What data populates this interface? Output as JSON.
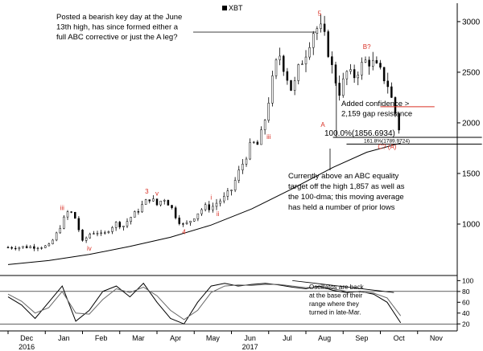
{
  "chart_data": [
    {
      "type": "candlestick",
      "legend": "XBT",
      "y_ticks": [
        "3000",
        "2500",
        "2000",
        "1500",
        "1000"
      ],
      "ylim": [
        500,
        3150
      ],
      "x_labels": [
        {
          "month": "Dec",
          "year": "2016"
        },
        {
          "month": "Jan",
          "year": ""
        },
        {
          "month": "Feb",
          "year": ""
        },
        {
          "month": "Mar",
          "year": ""
        },
        {
          "month": "Apr",
          "year": ""
        },
        {
          "month": "May",
          "year": ""
        },
        {
          "month": "Jun",
          "year": "2017"
        },
        {
          "month": "Jul",
          "year": ""
        },
        {
          "month": "Aug",
          "year": ""
        },
        {
          "month": "Sep",
          "year": ""
        },
        {
          "month": "Oct",
          "year": ""
        },
        {
          "month": "Nov",
          "year": ""
        }
      ],
      "price_path": [
        [
          0,
          770
        ],
        [
          3,
          775
        ],
        [
          6,
          780
        ],
        [
          7,
          880
        ],
        [
          8,
          1020
        ],
        [
          9,
          1140
        ],
        [
          10,
          1050
        ],
        [
          11,
          820
        ],
        [
          12,
          900
        ],
        [
          13,
          930
        ],
        [
          14,
          880
        ],
        [
          15,
          960
        ],
        [
          16,
          1010
        ],
        [
          17,
          980
        ],
        [
          18,
          1060
        ],
        [
          19,
          1120
        ],
        [
          20,
          1200
        ],
        [
          21,
          1260
        ],
        [
          22,
          1190
        ],
        [
          23,
          1260
        ],
        [
          24,
          1180
        ],
        [
          25,
          1050
        ],
        [
          26,
          980
        ],
        [
          27,
          1040
        ],
        [
          28,
          1110
        ],
        [
          29,
          1170
        ],
        [
          30,
          1160
        ],
        [
          31,
          1220
        ],
        [
          32,
          1260
        ],
        [
          33,
          1340
        ],
        [
          34,
          1500
        ],
        [
          35,
          1650
        ],
        [
          36,
          1800
        ],
        [
          37,
          1780
        ],
        [
          38,
          2050
        ],
        [
          39,
          2400
        ],
        [
          40,
          2700
        ],
        [
          41,
          2500
        ],
        [
          42,
          2300
        ],
        [
          43,
          2550
        ],
        [
          44,
          2700
        ],
        [
          45,
          2900
        ],
        [
          46,
          2950
        ],
        [
          47,
          2800
        ],
        [
          48,
          2500
        ],
        [
          49,
          2300
        ],
        [
          50,
          2500
        ],
        [
          51,
          2450
        ],
        [
          52,
          2550
        ],
        [
          53,
          2620
        ],
        [
          54,
          2580
        ],
        [
          55,
          2500
        ],
        [
          56,
          2400
        ],
        [
          57,
          2150
        ],
        [
          58,
          1880
        ]
      ],
      "moving_average": {
        "label": "100-dma",
        "points": [
          [
            0,
            600
          ],
          [
            6,
            640
          ],
          [
            12,
            700
          ],
          [
            18,
            780
          ],
          [
            24,
            870
          ],
          [
            30,
            990
          ],
          [
            36,
            1150
          ],
          [
            42,
            1350
          ],
          [
            48,
            1560
          ],
          [
            53,
            1710
          ],
          [
            58,
            1800
          ]
        ]
      },
      "point_labels": [
        {
          "text": "iii",
          "x": 8,
          "y": 1140,
          "color": "#d93025"
        },
        {
          "text": "iv",
          "x": 12,
          "y": 740,
          "color": "#d93025"
        },
        {
          "text": "3",
          "x": 20.5,
          "y": 1300,
          "color": "#d93025"
        },
        {
          "text": "v",
          "x": 22,
          "y": 1280,
          "color": "#d93025"
        },
        {
          "text": "4",
          "x": 26,
          "y": 900,
          "color": "#d93025"
        },
        {
          "text": "i",
          "x": 30,
          "y": 1240,
          "color": "#d93025"
        },
        {
          "text": "ii",
          "x": 31,
          "y": 1080,
          "color": "#d93025"
        },
        {
          "text": "iii",
          "x": 38.5,
          "y": 1840,
          "color": "#d93025"
        },
        {
          "text": "5",
          "x": 46,
          "y": 3060,
          "color": "#d93025"
        },
        {
          "text": "B?",
          "x": 53,
          "y": 2730,
          "color": "#d93025"
        },
        {
          "text": "A",
          "x": 46.5,
          "y": 1960,
          "color": "#d93025"
        },
        {
          "text": "C? (A)",
          "x": 56,
          "y": 1740,
          "color": "#d93025"
        }
      ],
      "levels": [
        {
          "label": "100.0%(1856.6934)",
          "value": 1857,
          "from_x": 48,
          "to_x": 70,
          "color": "#000000"
        },
        {
          "label": "161.8%(1789.9724)",
          "value": 1790,
          "from_x": 50,
          "to_x": 70,
          "color": "#000000"
        },
        {
          "label": "",
          "value": 2159,
          "from_x": 55,
          "to_x": 63,
          "color": "#d93025"
        }
      ],
      "annotations": [
        {
          "lines": [
            "Posted a bearish key day at the June",
            "13th high, has since formed either a",
            "full ABC corrective or just the A leg?"
          ]
        },
        {
          "lines": [
            "Added confidence >",
            "2,159 gap resistance"
          ]
        },
        {
          "lines": [
            "Currently above an ABC equality",
            "target off the high 1,857 as well as",
            "the 100-dma; this moving average",
            "has held a number of prior lows"
          ]
        }
      ],
      "grid": false,
      "legend_position": "top-center"
    },
    {
      "type": "line",
      "title": "",
      "y_ticks": [
        "100",
        "80",
        "60",
        "40",
        "20"
      ],
      "ylim": [
        10,
        105
      ],
      "series": [
        {
          "color": "#000000",
          "values": [
            [
              0,
              70
            ],
            [
              2,
              55
            ],
            [
              4,
              30
            ],
            [
              6,
              60
            ],
            [
              8,
              90
            ],
            [
              10,
              25
            ],
            [
              12,
              45
            ],
            [
              14,
              80
            ],
            [
              16,
              90
            ],
            [
              18,
              70
            ],
            [
              20,
              95
            ],
            [
              22,
              60
            ],
            [
              24,
              30
            ],
            [
              26,
              20
            ],
            [
              28,
              60
            ],
            [
              30,
              90
            ],
            [
              32,
              95
            ],
            [
              34,
              90
            ],
            [
              36,
              93
            ],
            [
              38,
              95
            ],
            [
              40,
              92
            ],
            [
              42,
              88
            ],
            [
              44,
              85
            ],
            [
              46,
              90
            ],
            [
              48,
              82
            ],
            [
              50,
              78
            ],
            [
              52,
              80
            ],
            [
              54,
              75
            ],
            [
              56,
              60
            ],
            [
              58,
              22
            ]
          ]
        },
        {
          "color": "#666666",
          "values": [
            [
              0,
              75
            ],
            [
              2,
              62
            ],
            [
              4,
              40
            ],
            [
              6,
              50
            ],
            [
              8,
              80
            ],
            [
              10,
              40
            ],
            [
              12,
              38
            ],
            [
              14,
              65
            ],
            [
              16,
              85
            ],
            [
              18,
              78
            ],
            [
              20,
              88
            ],
            [
              22,
              72
            ],
            [
              24,
              45
            ],
            [
              26,
              28
            ],
            [
              28,
              45
            ],
            [
              30,
              78
            ],
            [
              32,
              90
            ],
            [
              34,
              92
            ],
            [
              36,
              91
            ],
            [
              38,
              93
            ],
            [
              40,
              93
            ],
            [
              42,
              90
            ],
            [
              44,
              87
            ],
            [
              46,
              88
            ],
            [
              48,
              85
            ],
            [
              50,
              80
            ],
            [
              52,
              79
            ],
            [
              54,
              77
            ],
            [
              56,
              68
            ],
            [
              58,
              35
            ]
          ]
        }
      ],
      "reference_lines": [
        80,
        20
      ],
      "annotation": {
        "lines": [
          "Oscillatos are back",
          "at the base of their",
          "range where they",
          "turned in late-Mar."
        ]
      }
    }
  ]
}
